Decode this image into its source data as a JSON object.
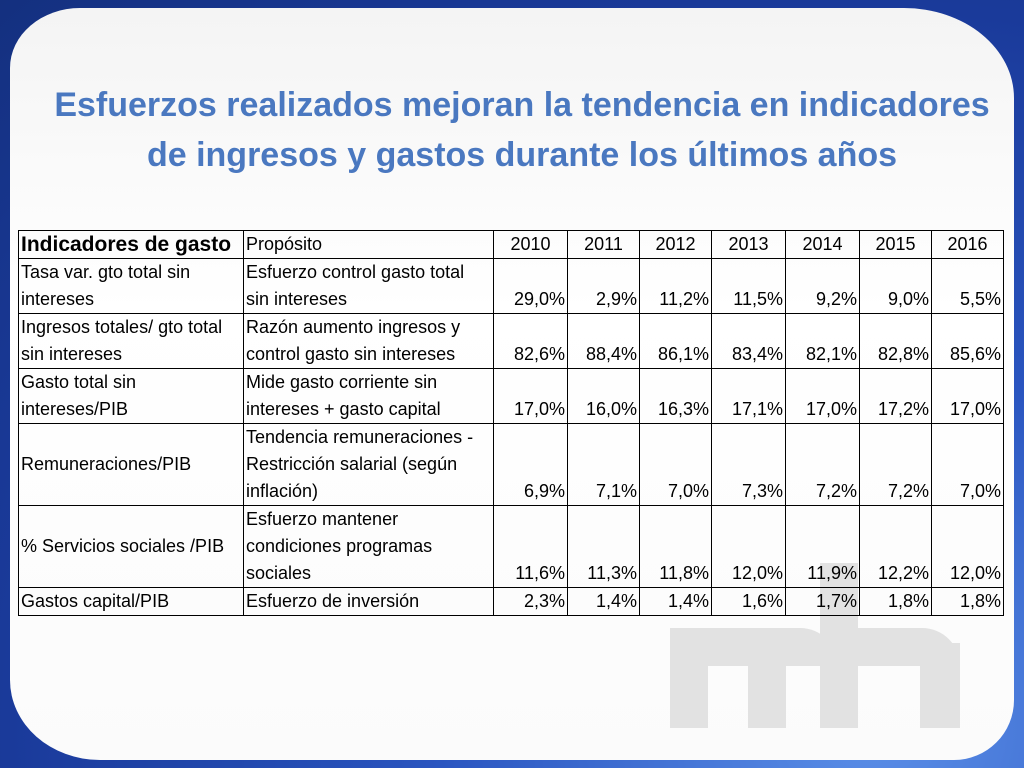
{
  "slide": {
    "title_line1": "Esfuerzos realizados mejoran la tendencia en indicadores",
    "title_line2": "de ingresos y gastos durante los últimos años"
  },
  "table": {
    "headers": {
      "indicator": "Indicadores de gasto",
      "purpose": "Propósito",
      "years": [
        "2010",
        "2011",
        "2012",
        "2013",
        "2014",
        "2015",
        "2016"
      ]
    },
    "rows": [
      {
        "indicator": "Tasa var. gto total sin intereses",
        "purpose": "Esfuerzo control gasto total sin intereses",
        "values": [
          "29,0%",
          "2,9%",
          "11,2%",
          "11,5%",
          "9,2%",
          "9,0%",
          "5,5%"
        ]
      },
      {
        "indicator": "Ingresos totales/ gto total sin intereses",
        "purpose": "Razón aumento ingresos y control gasto sin intereses",
        "values": [
          "82,6%",
          "88,4%",
          "86,1%",
          "83,4%",
          "82,1%",
          "82,8%",
          "85,6%"
        ]
      },
      {
        "indicator": "Gasto total sin intereses/PIB",
        "purpose": "Mide gasto corriente sin intereses + gasto capital",
        "values": [
          "17,0%",
          "16,0%",
          "16,3%",
          "17,1%",
          "17,0%",
          "17,2%",
          "17,0%"
        ]
      },
      {
        "indicator": "Remuneraciones/PIB",
        "purpose": "Tendencia remuneraciones -Restricción salarial (según inflación)",
        "values": [
          "6,9%",
          "7,1%",
          "7,0%",
          "7,3%",
          "7,2%",
          "7,2%",
          "7,0%"
        ]
      },
      {
        "indicator": "% Servicios sociales /PIB",
        "purpose": "Esfuerzo mantener condiciones programas sociales",
        "values": [
          "11,6%",
          "11,3%",
          "11,8%",
          "12,0%",
          "11,9%",
          "12,2%",
          "12,0%"
        ]
      },
      {
        "indicator": "Gastos capital/PIB",
        "purpose": "Esfuerzo de inversión",
        "values": [
          "2,3%",
          "1,4%",
          "1,4%",
          "1,6%",
          "1,7%",
          "1,8%",
          "1,8%"
        ]
      }
    ]
  },
  "colors": {
    "title": "#4a78c0",
    "frame": "#1f3f9a",
    "watermark": "#e2e2e2"
  }
}
